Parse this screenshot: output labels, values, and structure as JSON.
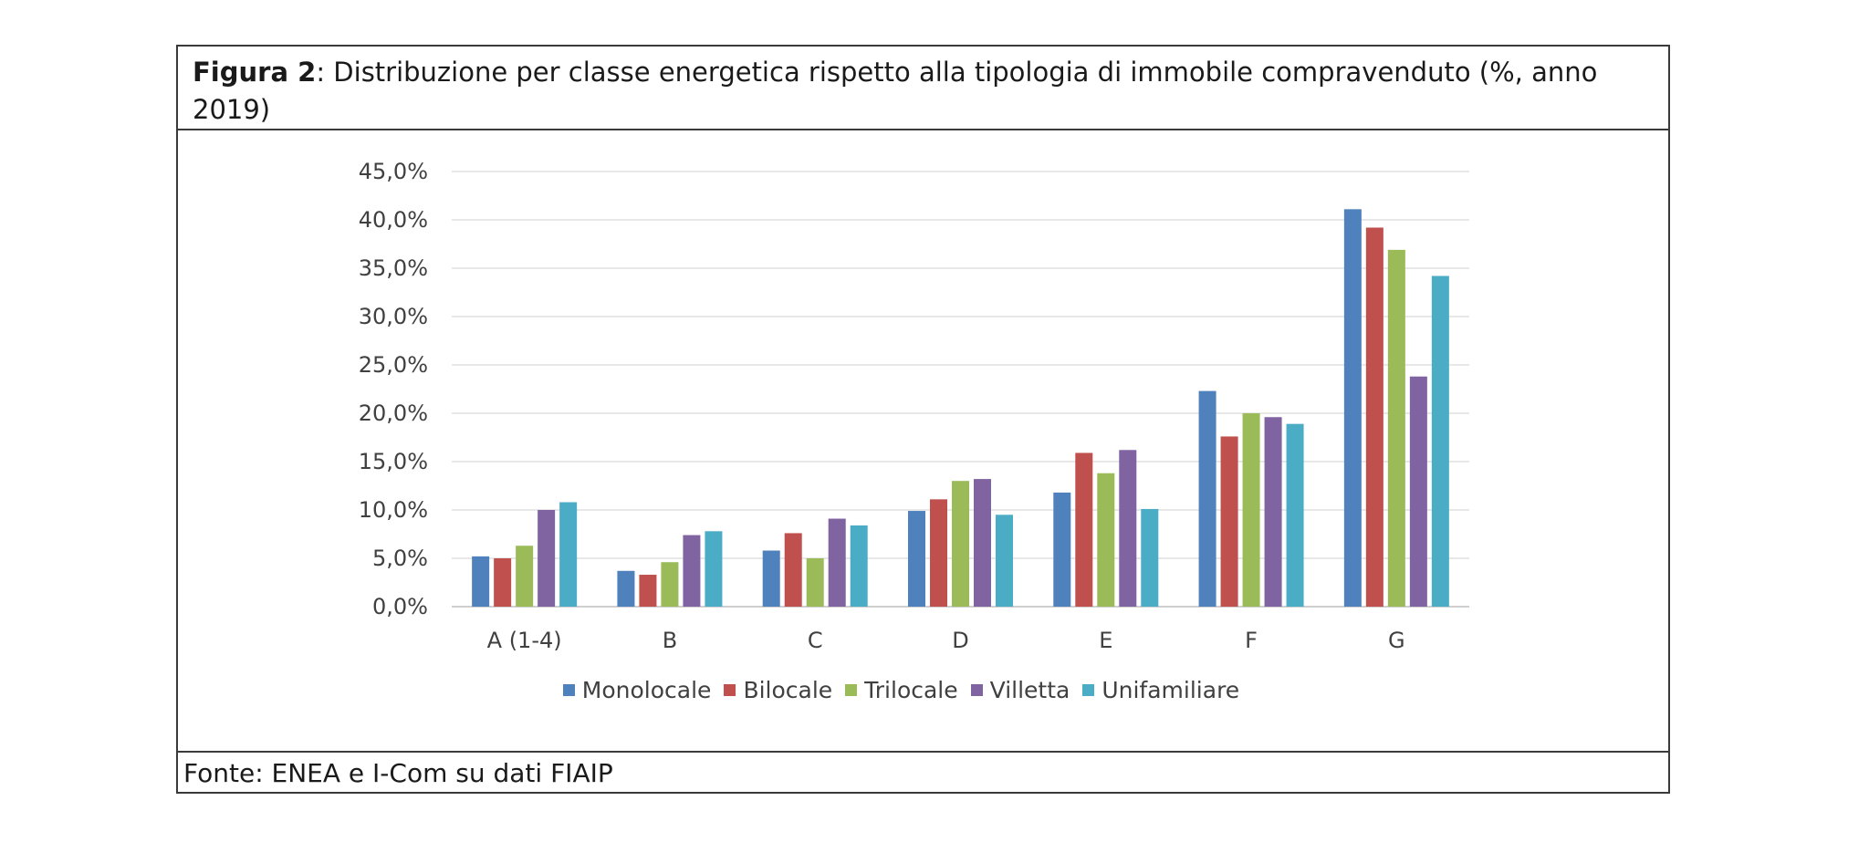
{
  "figure": {
    "title_bold": "Figura 2",
    "title_rest": ": Distribuzione per classe energetica rispetto alla tipologia di immobile compravenduto (%, anno 2019)",
    "source": "Fonte: ENEA e I-Com su dati FIAIP"
  },
  "chart_data": {
    "type": "bar",
    "title": "",
    "xlabel": "",
    "ylabel": "",
    "ylim": [
      0,
      45
    ],
    "yticks": [
      "0,0%",
      "5,0%",
      "10,0%",
      "15,0%",
      "20,0%",
      "25,0%",
      "30,0%",
      "35,0%",
      "40,0%",
      "45,0%"
    ],
    "grid": true,
    "legend_position": "bottom",
    "categories": [
      "A (1-4)",
      "B",
      "C",
      "D",
      "E",
      "F",
      "G"
    ],
    "series": [
      {
        "name": "Monolocale",
        "color": "#4F81BD",
        "values": [
          5.2,
          3.7,
          5.8,
          9.9,
          11.8,
          22.3,
          41.1
        ]
      },
      {
        "name": "Bilocale",
        "color": "#C0504D",
        "values": [
          5.0,
          3.3,
          7.6,
          11.1,
          15.9,
          17.6,
          39.2
        ]
      },
      {
        "name": "Trilocale",
        "color": "#9BBB59",
        "values": [
          6.3,
          4.6,
          5.0,
          13.0,
          13.8,
          20.0,
          36.9
        ]
      },
      {
        "name": "Villetta",
        "color": "#8064A2",
        "values": [
          10.0,
          7.4,
          9.1,
          13.2,
          16.2,
          19.6,
          23.8
        ]
      },
      {
        "name": "Unifamiliare",
        "color": "#4BACC6",
        "values": [
          10.8,
          7.8,
          8.4,
          9.5,
          10.1,
          18.9,
          34.2
        ]
      }
    ]
  }
}
